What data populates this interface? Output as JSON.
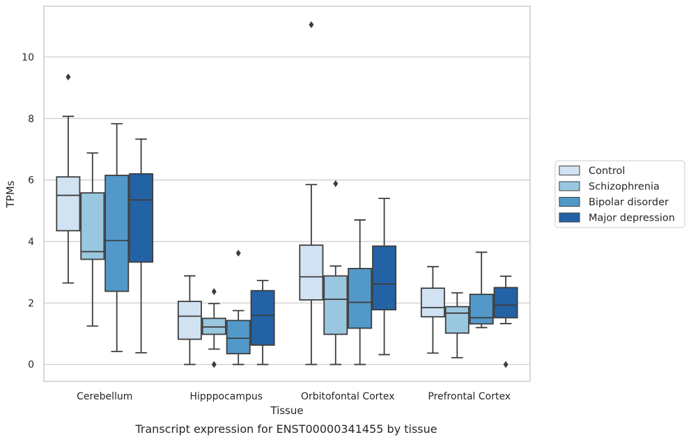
{
  "chart_data": {
    "type": "boxplot",
    "xlabel": "Tissue",
    "ylabel": "TPMs",
    "caption": "Transcript expression for ENST00000341455 by tissue",
    "categories": [
      "Cerebellum",
      "Hipppocampus",
      "Orbitofontal Cortex",
      "Prefrontal Cortex"
    ],
    "ylim": [
      -0.55,
      11.65
    ],
    "yticks": [
      0,
      2,
      4,
      6,
      8,
      10
    ],
    "grid": "horizontal",
    "legend_position": "right",
    "series": [
      {
        "name": "Control",
        "color": "#d1e2f2",
        "boxes": [
          {
            "whislo": 2.65,
            "q1": 4.35,
            "median": 5.5,
            "q3": 6.1,
            "whishi": 8.07,
            "fliers": [
              9.35
            ]
          },
          {
            "whislo": 0.0,
            "q1": 0.82,
            "median": 1.57,
            "q3": 2.05,
            "whishi": 2.88,
            "fliers": []
          },
          {
            "whislo": 0.0,
            "q1": 2.1,
            "median": 2.85,
            "q3": 3.88,
            "whishi": 5.85,
            "fliers": [
              11.05
            ]
          },
          {
            "whislo": 0.37,
            "q1": 1.55,
            "median": 1.85,
            "q3": 2.48,
            "whishi": 3.18,
            "fliers": []
          }
        ]
      },
      {
        "name": "Schizophrenia",
        "color": "#9ac7e0",
        "boxes": [
          {
            "whislo": 1.25,
            "q1": 3.42,
            "median": 3.67,
            "q3": 5.58,
            "whishi": 6.88,
            "fliers": []
          },
          {
            "whislo": 0.5,
            "q1": 0.98,
            "median": 1.22,
            "q3": 1.5,
            "whishi": 1.98,
            "fliers": [
              0.0,
              2.37
            ]
          },
          {
            "whislo": 0.0,
            "q1": 0.98,
            "median": 2.12,
            "q3": 2.88,
            "whishi": 3.2,
            "fliers": [
              5.88
            ]
          },
          {
            "whislo": 0.22,
            "q1": 1.02,
            "median": 1.67,
            "q3": 1.88,
            "whishi": 2.33,
            "fliers": []
          }
        ]
      },
      {
        "name": "Bipolar disorder",
        "color": "#5299c9",
        "boxes": [
          {
            "whislo": 0.42,
            "q1": 2.38,
            "median": 4.03,
            "q3": 6.15,
            "whishi": 7.83,
            "fliers": []
          },
          {
            "whislo": 0.0,
            "q1": 0.35,
            "median": 0.85,
            "q3": 1.43,
            "whishi": 1.75,
            "fliers": [
              3.62
            ]
          },
          {
            "whislo": 0.0,
            "q1": 1.18,
            "median": 2.02,
            "q3": 3.12,
            "whishi": 4.7,
            "fliers": []
          },
          {
            "whislo": 1.2,
            "q1": 1.32,
            "median": 1.52,
            "q3": 2.28,
            "whishi": 3.65,
            "fliers": []
          }
        ]
      },
      {
        "name": "Major depression",
        "color": "#2462a6",
        "boxes": [
          {
            "whislo": 0.38,
            "q1": 3.33,
            "median": 5.35,
            "q3": 6.2,
            "whishi": 7.33,
            "fliers": []
          },
          {
            "whislo": 0.0,
            "q1": 0.63,
            "median": 1.6,
            "q3": 2.4,
            "whishi": 2.73,
            "fliers": []
          },
          {
            "whislo": 0.32,
            "q1": 1.78,
            "median": 2.62,
            "q3": 3.85,
            "whishi": 5.4,
            "fliers": []
          },
          {
            "whislo": 1.33,
            "q1": 1.52,
            "median": 1.93,
            "q3": 2.5,
            "whishi": 2.87,
            "fliers": [
              0.0
            ]
          }
        ]
      }
    ]
  }
}
